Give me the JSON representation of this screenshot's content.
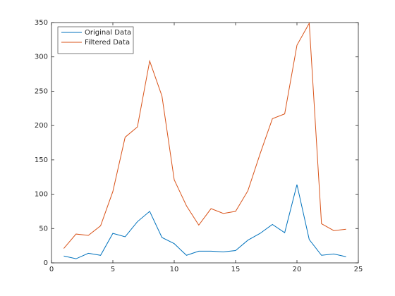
{
  "chart_data": {
    "type": "line",
    "x": [
      1,
      2,
      3,
      4,
      5,
      6,
      7,
      8,
      9,
      10,
      11,
      12,
      13,
      14,
      15,
      16,
      17,
      18,
      19,
      20,
      21,
      22,
      23,
      24
    ],
    "series": [
      {
        "name": "Original Data",
        "color": "#0072bd",
        "values": [
          10,
          6,
          14,
          11,
          43,
          38,
          60,
          75,
          37,
          28,
          11,
          17,
          17,
          16,
          18,
          33,
          43,
          56,
          44,
          114,
          34,
          11,
          13,
          9
        ]
      },
      {
        "name": "Filtered Data",
        "color": "#d95319",
        "values": [
          21,
          42,
          40,
          54,
          104,
          183,
          198,
          294,
          243,
          121,
          83,
          55,
          79,
          72,
          75,
          105,
          159,
          210,
          217,
          317,
          349,
          57,
          47,
          49
        ]
      }
    ],
    "xlim": [
      0,
      25
    ],
    "xticks": [
      0,
      5,
      10,
      15,
      20,
      25
    ],
    "ylim": [
      0,
      350
    ],
    "yticks": [
      0,
      50,
      100,
      150,
      200,
      250,
      300,
      350
    ],
    "grid": false,
    "legend": "upper-left"
  }
}
